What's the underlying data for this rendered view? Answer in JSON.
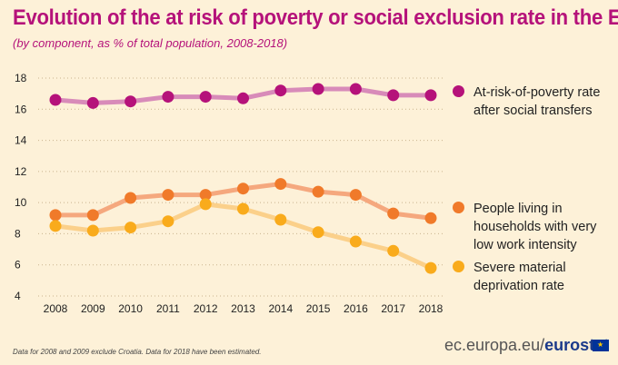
{
  "header": {
    "title": "Evolution of the at risk of poverty or social exclusion rate in the EU",
    "subtitle": "(by component, as % of total population, 2008-2018)"
  },
  "chart_data": {
    "type": "line",
    "title": "Evolution of the at risk of poverty or social exclusion rate in the EU",
    "subtitle": "(by component, as % of total population, 2008-2018)",
    "xlabel": "",
    "ylabel": "",
    "categories": [
      "2008",
      "2009",
      "2010",
      "2011",
      "2012",
      "2013",
      "2014",
      "2015",
      "2016",
      "2017",
      "2018"
    ],
    "yticks": [
      "4",
      "6",
      "8",
      "10",
      "12",
      "14",
      "16",
      "18"
    ],
    "ylim": [
      4,
      18
    ],
    "grid": "horizontal dotted",
    "legend_position": "right",
    "series": [
      {
        "name": "At-risk-of-poverty rate after social transfers",
        "color": "#b5127a",
        "line_color": "#d88bb9",
        "values": [
          16.6,
          16.4,
          16.5,
          16.8,
          16.8,
          16.7,
          17.2,
          17.3,
          17.3,
          16.9,
          16.9
        ]
      },
      {
        "name": "People living in households with very low work intensity",
        "color": "#f07a2a",
        "line_color": "#f5a87e",
        "values": [
          9.2,
          9.2,
          10.3,
          10.5,
          10.5,
          10.9,
          11.2,
          10.7,
          10.5,
          9.3,
          9.0
        ]
      },
      {
        "name": "Severe material deprivation rate",
        "color": "#f9ab1c",
        "line_color": "#fbd08a",
        "values": [
          8.5,
          8.2,
          8.4,
          8.8,
          9.9,
          9.6,
          8.9,
          8.1,
          7.5,
          6.9,
          5.8
        ]
      }
    ]
  },
  "legend": {
    "items": [
      "At-risk-of-poverty rate after social transfers",
      "People living in households with very low work intensity",
      "Severe material deprivation rate"
    ]
  },
  "footer": {
    "note": "Data for 2008 and 2009 exclude Croatia. Data for 2018 have been estimated.",
    "brand_url": "ec.europa.eu/",
    "brand_name": "eurostat"
  }
}
